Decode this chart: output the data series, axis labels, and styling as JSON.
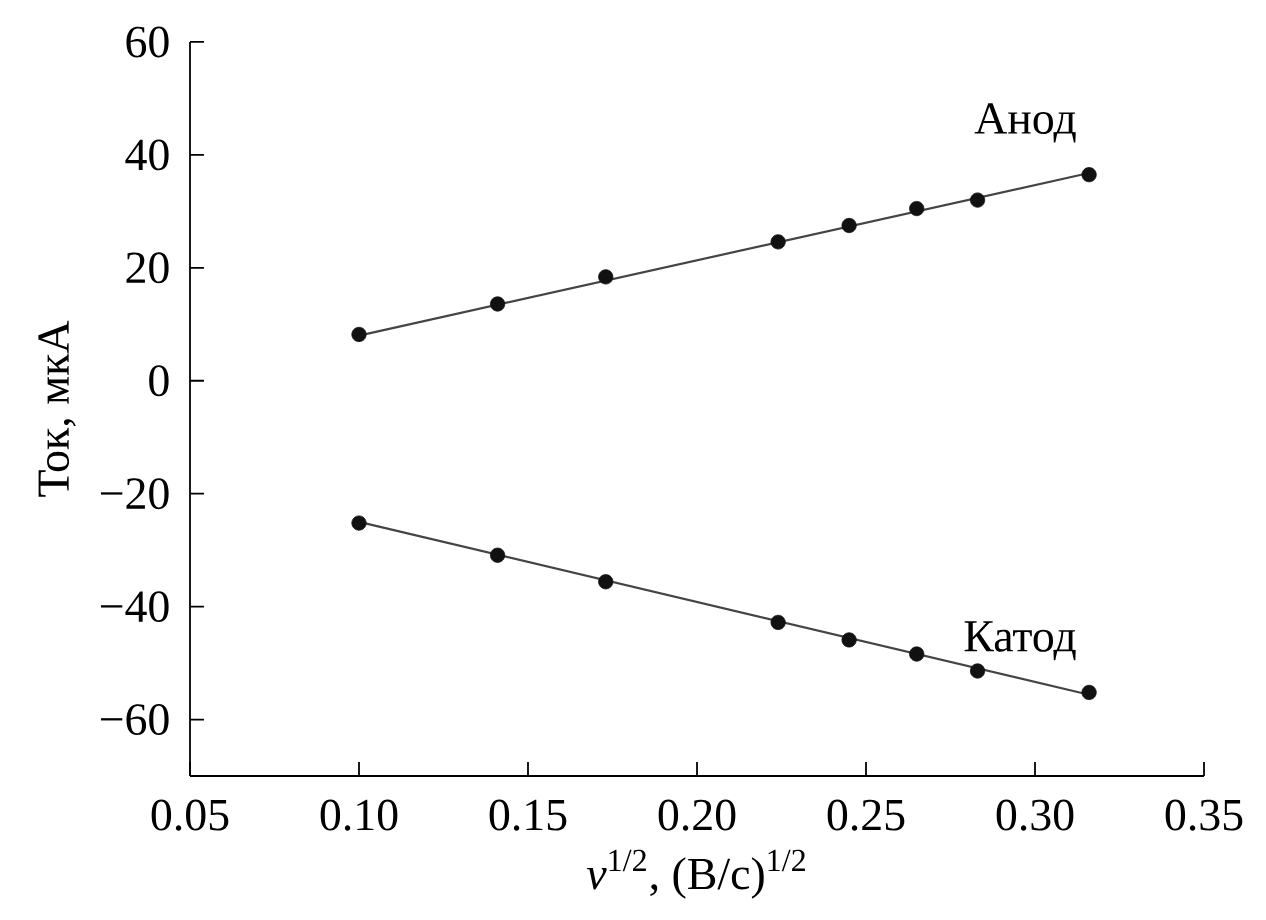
{
  "chart_data": {
    "type": "scatter",
    "xlabel": "*v*$^{1/2}$, (В/с)$^{1/2}$",
    "ylabel": "Ток, мкА",
    "xlim": [
      0.05,
      0.35
    ],
    "ylim": [
      -70,
      60
    ],
    "xticks": [
      {
        "value": 0.05,
        "label": "0.05"
      },
      {
        "value": 0.1,
        "label": "0.10"
      },
      {
        "value": 0.15,
        "label": "0.15"
      },
      {
        "value": 0.2,
        "label": "0.20"
      },
      {
        "value": 0.25,
        "label": "0.25"
      },
      {
        "value": 0.3,
        "label": "0.30"
      },
      {
        "value": 0.35,
        "label": "0.35"
      }
    ],
    "yticks": [
      {
        "value": -60,
        "label": "−60"
      },
      {
        "value": -40,
        "label": "−40"
      },
      {
        "value": -20,
        "label": "−20"
      },
      0,
      20,
      40,
      60
    ],
    "grid": false,
    "legend": false,
    "marker": "circle",
    "series": [
      {
        "name": "Анод",
        "color": "#111111",
        "x": [
          0.1,
          0.141,
          0.173,
          0.224,
          0.245,
          0.265,
          0.283,
          0.316
        ],
        "values": [
          8.2,
          13.6,
          18.4,
          24.6,
          27.5,
          30.5,
          32.0,
          36.5
        ]
      },
      {
        "name": "Катод",
        "color": "#111111",
        "x": [
          0.1,
          0.141,
          0.173,
          0.224,
          0.245,
          0.265,
          0.283,
          0.316
        ],
        "values": [
          -25.2,
          -30.9,
          -35.6,
          -42.8,
          -45.9,
          -48.4,
          -51.4,
          -55.2
        ]
      },
      {
        "type": "line",
        "color": "#444444",
        "marker": "none",
        "line_style": "solid",
        "x": [
          0.1,
          0.316
        ],
        "values": [
          8.0,
          36.8
        ]
      },
      {
        "type": "line",
        "color": "#444444",
        "marker": "none",
        "line_style": "solid",
        "x": [
          0.1,
          0.316
        ],
        "values": [
          -25.0,
          -55.6
        ]
      }
    ]
  }
}
